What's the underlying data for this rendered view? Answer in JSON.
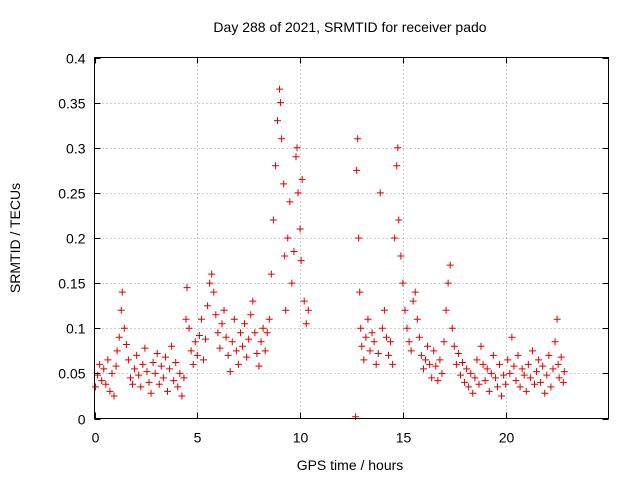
{
  "chart_data": {
    "type": "scatter",
    "title": "Day 288 of 2021, SRMTID for receiver pado",
    "xlabel": "GPS time / hours",
    "ylabel": "SRMTID / TECUs",
    "xlim": [
      0,
      25
    ],
    "ylim": [
      0,
      0.4
    ],
    "xticks": [
      0,
      5,
      10,
      15,
      20
    ],
    "xtick_labels": [
      "0",
      "5",
      "10",
      "15",
      "20"
    ],
    "yticks": [
      0,
      0.05,
      0.1,
      0.15,
      0.2,
      0.25,
      0.3,
      0.35,
      0.4
    ],
    "ytick_labels": [
      "0",
      "0.05",
      "0.1",
      "0.15",
      "0.2",
      "0.25",
      "0.3",
      "0.35",
      "0.4"
    ],
    "grid": true,
    "marker": "plus",
    "color": "#e00000",
    "series": [
      {
        "name": "pado",
        "points": [
          [
            0.05,
            0.035
          ],
          [
            0.15,
            0.048
          ],
          [
            0.25,
            0.06
          ],
          [
            0.35,
            0.042
          ],
          [
            0.45,
            0.055
          ],
          [
            0.55,
            0.038
          ],
          [
            0.65,
            0.065
          ],
          [
            0.75,
            0.03
          ],
          [
            0.85,
            0.05
          ],
          [
            0.95,
            0.025
          ],
          [
            1.05,
            0.058
          ],
          [
            1.1,
            0.075
          ],
          [
            1.2,
            0.09
          ],
          [
            1.3,
            0.12
          ],
          [
            1.35,
            0.14
          ],
          [
            1.45,
            0.1
          ],
          [
            1.55,
            0.082
          ],
          [
            1.65,
            0.065
          ],
          [
            1.75,
            0.045
          ],
          [
            1.85,
            0.038
          ],
          [
            1.95,
            0.055
          ],
          [
            2.05,
            0.07
          ],
          [
            2.15,
            0.048
          ],
          [
            2.25,
            0.035
          ],
          [
            2.35,
            0.06
          ],
          [
            2.45,
            0.078
          ],
          [
            2.55,
            0.052
          ],
          [
            2.65,
            0.04
          ],
          [
            2.75,
            0.028
          ],
          [
            2.85,
            0.062
          ],
          [
            2.95,
            0.05
          ],
          [
            3.05,
            0.072
          ],
          [
            3.15,
            0.038
          ],
          [
            3.25,
            0.058
          ],
          [
            3.35,
            0.045
          ],
          [
            3.45,
            0.068
          ],
          [
            3.55,
            0.03
          ],
          [
            3.65,
            0.055
          ],
          [
            3.75,
            0.08
          ],
          [
            3.85,
            0.042
          ],
          [
            3.95,
            0.062
          ],
          [
            4.05,
            0.035
          ],
          [
            4.15,
            0.05
          ],
          [
            4.25,
            0.025
          ],
          [
            4.35,
            0.045
          ],
          [
            4.45,
            0.11
          ],
          [
            4.5,
            0.145
          ],
          [
            4.6,
            0.1
          ],
          [
            4.7,
            0.075
          ],
          [
            4.8,
            0.06
          ],
          [
            4.9,
            0.085
          ],
          [
            5.0,
            0.07
          ],
          [
            5.1,
            0.092
          ],
          [
            5.2,
            0.11
          ],
          [
            5.3,
            0.065
          ],
          [
            5.4,
            0.088
          ],
          [
            5.5,
            0.125
          ],
          [
            5.6,
            0.15
          ],
          [
            5.7,
            0.16
          ],
          [
            5.8,
            0.14
          ],
          [
            5.9,
            0.115
          ],
          [
            6.0,
            0.095
          ],
          [
            6.1,
            0.078
          ],
          [
            6.2,
            0.105
          ],
          [
            6.3,
            0.12
          ],
          [
            6.4,
            0.09
          ],
          [
            6.5,
            0.07
          ],
          [
            6.6,
            0.052
          ],
          [
            6.7,
            0.085
          ],
          [
            6.8,
            0.11
          ],
          [
            6.9,
            0.075
          ],
          [
            7.0,
            0.06
          ],
          [
            7.1,
            0.095
          ],
          [
            7.2,
            0.08
          ],
          [
            7.3,
            0.105
          ],
          [
            7.4,
            0.068
          ],
          [
            7.5,
            0.088
          ],
          [
            7.6,
            0.115
          ],
          [
            7.7,
            0.13
          ],
          [
            7.8,
            0.095
          ],
          [
            7.9,
            0.072
          ],
          [
            8.0,
            0.058
          ],
          [
            8.1,
            0.085
          ],
          [
            8.2,
            0.1
          ],
          [
            8.3,
            0.075
          ],
          [
            8.4,
            0.095
          ],
          [
            8.5,
            0.11
          ],
          [
            8.6,
            0.16
          ],
          [
            8.7,
            0.22
          ],
          [
            8.8,
            0.28
          ],
          [
            8.9,
            0.33
          ],
          [
            9.0,
            0.365
          ],
          [
            9.05,
            0.35
          ],
          [
            9.1,
            0.31
          ],
          [
            9.2,
            0.26
          ],
          [
            9.25,
            0.18
          ],
          [
            9.3,
            0.12
          ],
          [
            9.4,
            0.2
          ],
          [
            9.5,
            0.24
          ],
          [
            9.6,
            0.15
          ],
          [
            9.7,
            0.185
          ],
          [
            9.8,
            0.29
          ],
          [
            9.85,
            0.3
          ],
          [
            9.9,
            0.25
          ],
          [
            10.0,
            0.21
          ],
          [
            10.05,
            0.175
          ],
          [
            10.1,
            0.265
          ],
          [
            10.2,
            0.13
          ],
          [
            10.3,
            0.105
          ],
          [
            10.4,
            0.12
          ],
          [
            12.7,
            0.002
          ],
          [
            12.75,
            0.275
          ],
          [
            12.8,
            0.31
          ],
          [
            12.85,
            0.2
          ],
          [
            12.9,
            0.14
          ],
          [
            12.95,
            0.1
          ],
          [
            13.0,
            0.08
          ],
          [
            13.1,
            0.065
          ],
          [
            13.2,
            0.09
          ],
          [
            13.3,
            0.11
          ],
          [
            13.4,
            0.075
          ],
          [
            13.5,
            0.095
          ],
          [
            13.6,
            0.085
          ],
          [
            13.7,
            0.06
          ],
          [
            13.8,
            0.072
          ],
          [
            13.9,
            0.25
          ],
          [
            14.0,
            0.1
          ],
          [
            14.1,
            0.12
          ],
          [
            14.2,
            0.09
          ],
          [
            14.3,
            0.07
          ],
          [
            14.4,
            0.085
          ],
          [
            14.5,
            0.06
          ],
          [
            14.6,
            0.2
          ],
          [
            14.7,
            0.28
          ],
          [
            14.75,
            0.3
          ],
          [
            14.8,
            0.22
          ],
          [
            14.9,
            0.18
          ],
          [
            15.0,
            0.15
          ],
          [
            15.1,
            0.12
          ],
          [
            15.2,
            0.1
          ],
          [
            15.3,
            0.085
          ],
          [
            15.4,
            0.075
          ],
          [
            15.5,
            0.13
          ],
          [
            15.6,
            0.14
          ],
          [
            15.7,
            0.11
          ],
          [
            15.8,
            0.09
          ],
          [
            15.9,
            0.07
          ],
          [
            16.0,
            0.055
          ],
          [
            16.1,
            0.065
          ],
          [
            16.2,
            0.08
          ],
          [
            16.3,
            0.06
          ],
          [
            16.4,
            0.045
          ],
          [
            16.5,
            0.075
          ],
          [
            16.6,
            0.058
          ],
          [
            16.7,
            0.042
          ],
          [
            16.8,
            0.065
          ],
          [
            16.9,
            0.05
          ],
          [
            17.0,
            0.085
          ],
          [
            17.1,
            0.12
          ],
          [
            17.2,
            0.15
          ],
          [
            17.3,
            0.17
          ],
          [
            17.4,
            0.1
          ],
          [
            17.5,
            0.08
          ],
          [
            17.6,
            0.06
          ],
          [
            17.7,
            0.072
          ],
          [
            17.8,
            0.048
          ],
          [
            17.9,
            0.062
          ],
          [
            18.0,
            0.04
          ],
          [
            18.1,
            0.055
          ],
          [
            18.2,
            0.035
          ],
          [
            18.3,
            0.05
          ],
          [
            18.4,
            0.028
          ],
          [
            18.5,
            0.045
          ],
          [
            18.6,
            0.065
          ],
          [
            18.7,
            0.038
          ],
          [
            18.8,
            0.08
          ],
          [
            18.9,
            0.06
          ],
          [
            19.0,
            0.042
          ],
          [
            19.1,
            0.055
          ],
          [
            19.2,
            0.03
          ],
          [
            19.3,
            0.05
          ],
          [
            19.4,
            0.07
          ],
          [
            19.5,
            0.045
          ],
          [
            19.6,
            0.035
          ],
          [
            19.7,
            0.06
          ],
          [
            19.8,
            0.025
          ],
          [
            19.9,
            0.048
          ],
          [
            20.0,
            0.038
          ],
          [
            20.1,
            0.065
          ],
          [
            20.2,
            0.05
          ],
          [
            20.3,
            0.09
          ],
          [
            20.4,
            0.058
          ],
          [
            20.5,
            0.042
          ],
          [
            20.6,
            0.07
          ],
          [
            20.7,
            0.035
          ],
          [
            20.8,
            0.055
          ],
          [
            20.9,
            0.048
          ],
          [
            21.0,
            0.03
          ],
          [
            21.1,
            0.06
          ],
          [
            21.2,
            0.045
          ],
          [
            21.3,
            0.075
          ],
          [
            21.4,
            0.038
          ],
          [
            21.5,
            0.052
          ],
          [
            21.6,
            0.065
          ],
          [
            21.7,
            0.04
          ],
          [
            21.8,
            0.058
          ],
          [
            21.9,
            0.028
          ],
          [
            22.0,
            0.048
          ],
          [
            22.1,
            0.07
          ],
          [
            22.2,
            0.035
          ],
          [
            22.3,
            0.055
          ],
          [
            22.4,
            0.085
          ],
          [
            22.5,
            0.11
          ],
          [
            22.55,
            0.06
          ],
          [
            22.6,
            0.045
          ],
          [
            22.7,
            0.068
          ],
          [
            22.8,
            0.04
          ],
          [
            22.85,
            0.052
          ]
        ]
      }
    ]
  }
}
